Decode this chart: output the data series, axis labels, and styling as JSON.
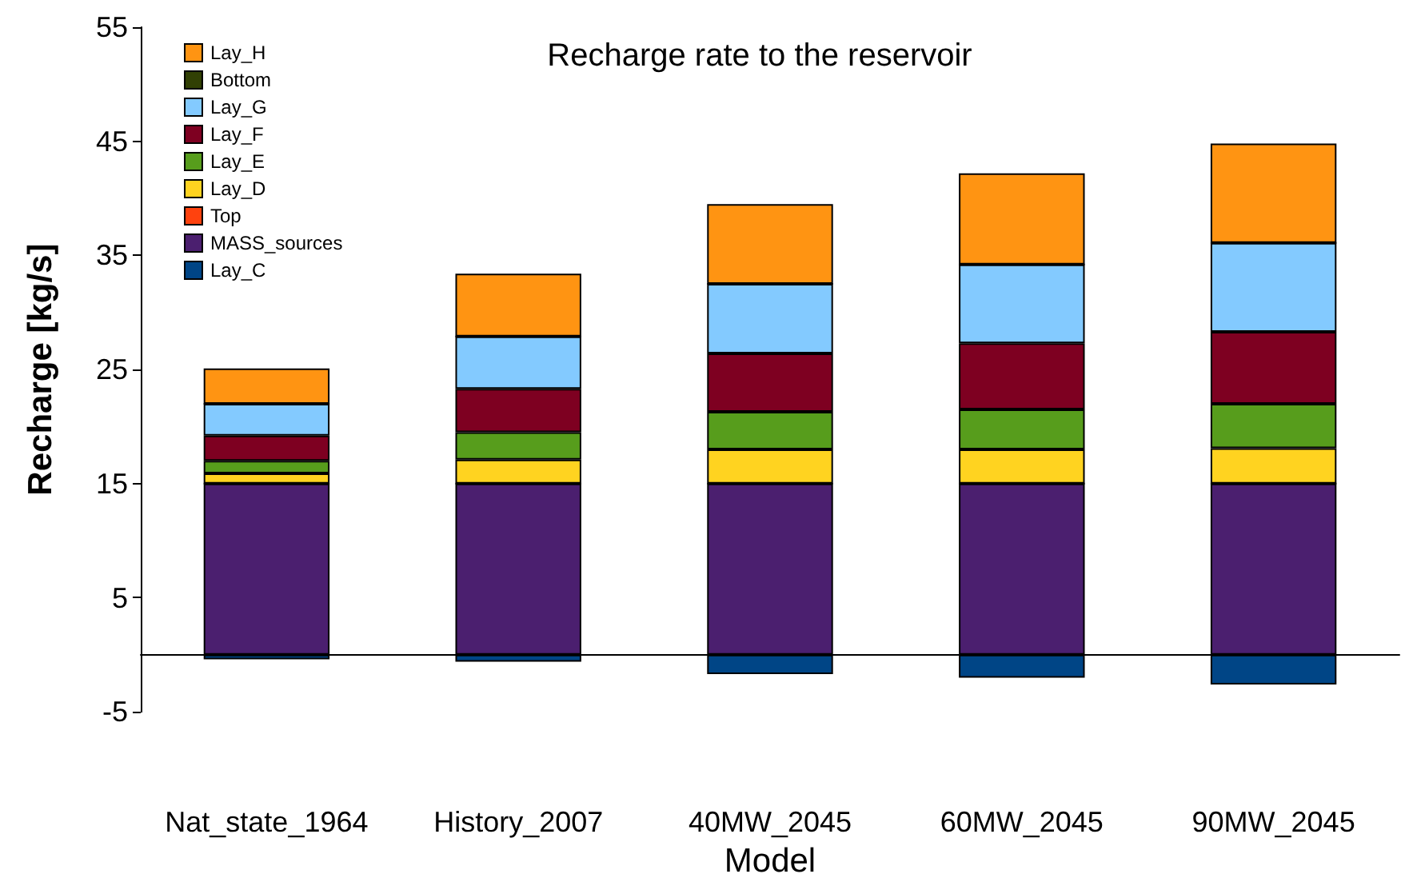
{
  "chart_data": {
    "type": "bar",
    "title": "Recharge rate to the reservoir",
    "xlabel": "Model",
    "ylabel": "Recharge [kg/s]",
    "categories": [
      "Nat_state_1964",
      "History_2007",
      "40MW_2045",
      "60MW_2045",
      "90MW_2045"
    ],
    "stacked": true,
    "ylim": [
      -5,
      55
    ],
    "yticks": [
      -5,
      5,
      15,
      25,
      35,
      45,
      55
    ],
    "grid": false,
    "legend": "top left",
    "series": [
      {
        "name": "Lay_C",
        "color": "#004586",
        "values": [
          -0.4,
          -0.6,
          -1.7,
          -2.0,
          -2.6
        ]
      },
      {
        "name": "MASS_sources",
        "color": "#4b1f6f",
        "values": [
          15,
          15,
          15,
          15,
          15
        ]
      },
      {
        "name": "Top",
        "color": "#ff420e",
        "values": [
          0,
          0,
          0,
          0,
          0
        ]
      },
      {
        "name": "Lay_D",
        "color": "#ffd320",
        "values": [
          0.9,
          2.1,
          3.0,
          3.0,
          3.1
        ]
      },
      {
        "name": "Lay_E",
        "color": "#579d1c",
        "values": [
          1.1,
          2.4,
          3.3,
          3.5,
          3.9
        ]
      },
      {
        "name": "Lay_F",
        "color": "#7e0021",
        "values": [
          2.2,
          3.8,
          5.1,
          5.8,
          6.3
        ]
      },
      {
        "name": "Lay_G",
        "color": "#83caff",
        "values": [
          2.8,
          4.6,
          6.1,
          6.9,
          7.8
        ]
      },
      {
        "name": "Bottom",
        "color": "#314004",
        "values": [
          0,
          0,
          0,
          0,
          0
        ]
      },
      {
        "name": "Lay_H",
        "color": "#ff9412",
        "values": [
          3.1,
          5.5,
          7.0,
          8.0,
          8.7
        ]
      }
    ]
  }
}
